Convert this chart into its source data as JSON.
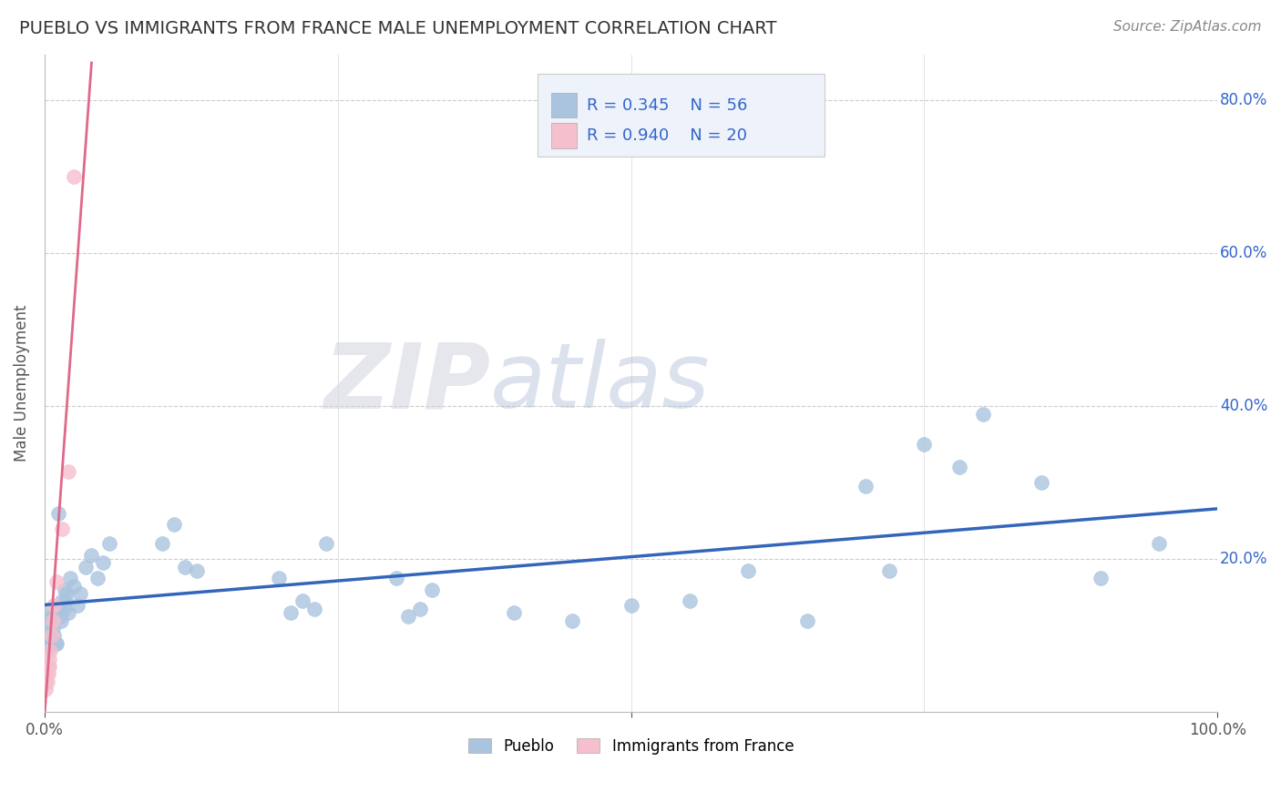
{
  "title": "PUEBLO VS IMMIGRANTS FROM FRANCE MALE UNEMPLOYMENT CORRELATION CHART",
  "source": "Source: ZipAtlas.com",
  "ylabel": "Male Unemployment",
  "pueblo_color": "#aac4df",
  "pueblo_edge_color": "#aac4df",
  "pueblo_line_color": "#3366bb",
  "france_color": "#f5bfce",
  "france_edge_color": "#f5bfce",
  "france_line_color": "#e06888",
  "background_color": "#ffffff",
  "grid_color": "#cccccc",
  "pueblo_R": 0.345,
  "pueblo_N": 56,
  "france_R": 0.94,
  "france_N": 20,
  "watermark_zip": "ZIP",
  "watermark_atlas": "atlas",
  "legend_facecolor": "#eef2fa",
  "legend_edgecolor": "#cccccc",
  "text_blue": "#3366cc",
  "title_color": "#333333",
  "source_color": "#888888",
  "pueblo_x": [
    0.001,
    0.002,
    0.003,
    0.004,
    0.005,
    0.006,
    0.007,
    0.008,
    0.009,
    0.01,
    0.011,
    0.012,
    0.013,
    0.014,
    0.015,
    0.016,
    0.017,
    0.018,
    0.019,
    0.02,
    0.022,
    0.025,
    0.028,
    0.03,
    0.035,
    0.04,
    0.045,
    0.05,
    0.055,
    0.1,
    0.11,
    0.12,
    0.13,
    0.2,
    0.21,
    0.22,
    0.23,
    0.24,
    0.3,
    0.31,
    0.32,
    0.33,
    0.4,
    0.45,
    0.5,
    0.55,
    0.6,
    0.65,
    0.7,
    0.72,
    0.75,
    0.78,
    0.8,
    0.85,
    0.9,
    0.95
  ],
  "pueblo_y": [
    0.13,
    0.12,
    0.1,
    0.085,
    0.09,
    0.125,
    0.11,
    0.1,
    0.09,
    0.09,
    0.135,
    0.26,
    0.125,
    0.12,
    0.145,
    0.135,
    0.16,
    0.145,
    0.155,
    0.13,
    0.175,
    0.165,
    0.14,
    0.155,
    0.19,
    0.205,
    0.175,
    0.195,
    0.22,
    0.22,
    0.245,
    0.19,
    0.185,
    0.175,
    0.13,
    0.145,
    0.135,
    0.22,
    0.175,
    0.125,
    0.135,
    0.16,
    0.13,
    0.12,
    0.14,
    0.145,
    0.185,
    0.12,
    0.295,
    0.185,
    0.35,
    0.32,
    0.39,
    0.3,
    0.175,
    0.22
  ],
  "france_x": [
    0.001,
    0.001,
    0.001,
    0.001,
    0.001,
    0.002,
    0.002,
    0.002,
    0.003,
    0.003,
    0.004,
    0.004,
    0.005,
    0.006,
    0.007,
    0.008,
    0.01,
    0.015,
    0.02,
    0.025
  ],
  "france_y": [
    0.03,
    0.04,
    0.05,
    0.06,
    0.07,
    0.04,
    0.05,
    0.06,
    0.05,
    0.06,
    0.06,
    0.07,
    0.08,
    0.1,
    0.12,
    0.14,
    0.17,
    0.24,
    0.315,
    0.7
  ],
  "xlim": [
    0,
    1.0
  ],
  "ylim": [
    0,
    0.86
  ],
  "yticks": [
    0.2,
    0.4,
    0.6,
    0.8
  ],
  "ytick_labels": [
    "20.0%",
    "40.0%",
    "60.0%",
    "80.0%"
  ],
  "xtick_positions": [
    0.0,
    0.5,
    1.0
  ],
  "xtick_labels": [
    "0.0%",
    "",
    "100.0%"
  ]
}
